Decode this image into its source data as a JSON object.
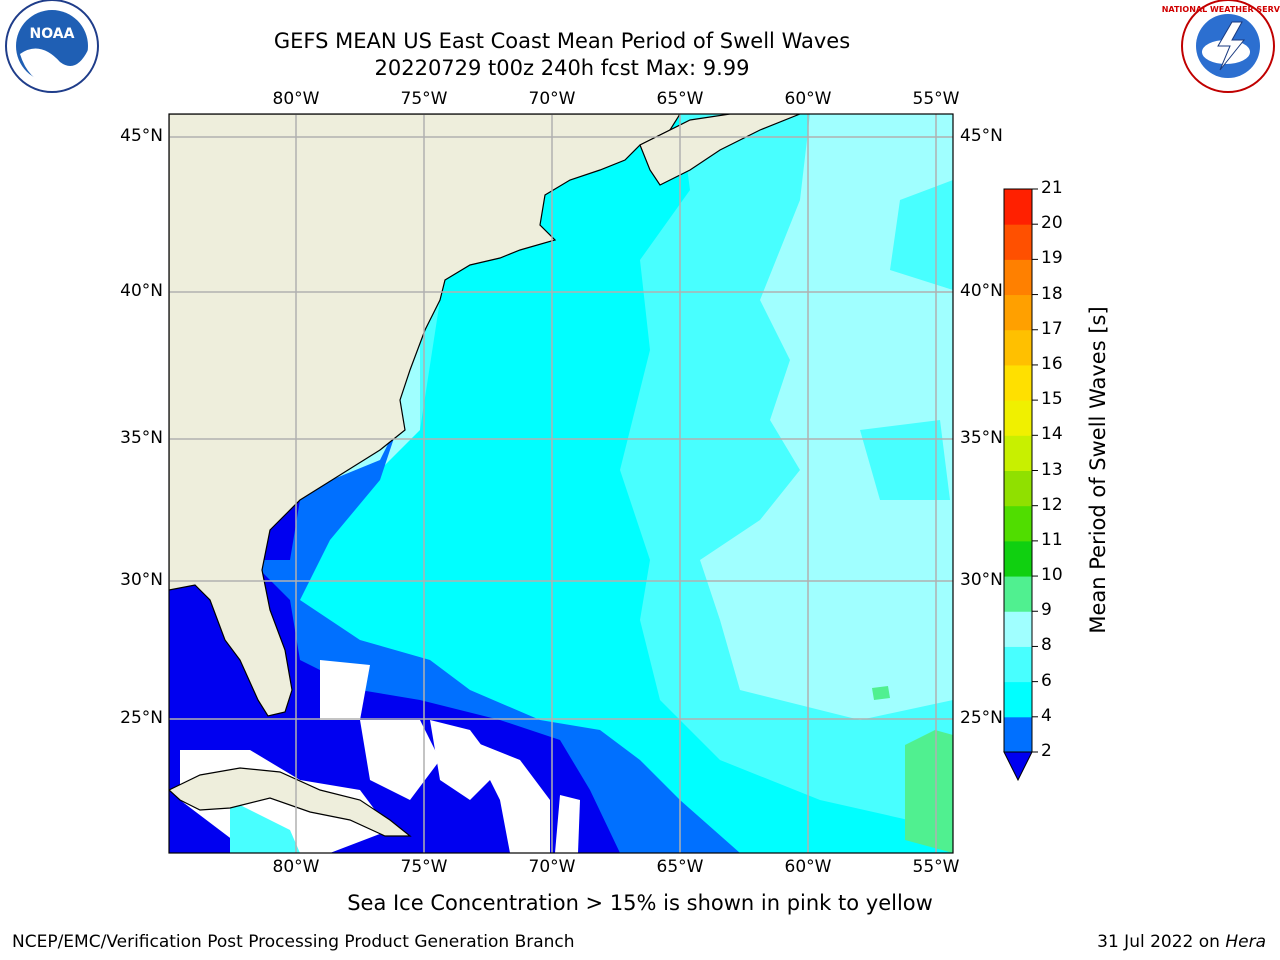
{
  "title": {
    "line1": "GEFS MEAN US East Coast Mean Period of Swell Waves",
    "line2": "20220729 t00z 240h fcst   Max: 9.99"
  },
  "logos": {
    "left": {
      "name": "noaa-logo",
      "text": "NOAA"
    },
    "right": {
      "name": "national-weather-service-logo",
      "text": "NATIONAL WEATHER SERVICE"
    }
  },
  "map": {
    "lon_ticks": [
      "80°W",
      "75°W",
      "70°W",
      "65°W",
      "60°W",
      "55°W"
    ],
    "lat_ticks": [
      "45°N",
      "40°N",
      "35°N",
      "30°N",
      "25°N"
    ],
    "colors": {
      "land": "#eeeedc",
      "ice_free_white": "#ffffff",
      "grid": "#b0b0b0",
      "coast": "#000000"
    }
  },
  "colorbar": {
    "title": "Mean Period of Swell Waves [s]",
    "levels": [
      "2",
      "4",
      "6",
      "8",
      "9",
      "10",
      "11",
      "12",
      "13",
      "14",
      "15",
      "16",
      "17",
      "18",
      "19",
      "20",
      "21"
    ],
    "colors": [
      "#0000f0",
      "#0070ff",
      "#00ffff",
      "#48ffff",
      "#a0ffff",
      "#50f090",
      "#10d010",
      "#50dd00",
      "#90e000",
      "#c8f000",
      "#f0f000",
      "#ffe000",
      "#ffc000",
      "#ffa000",
      "#ff8000",
      "#ff5000",
      "#ff2000",
      "#ff0000"
    ],
    "extend": "min"
  },
  "note": "Sea Ice Concentration > 15% is shown in pink to yellow",
  "footer": {
    "left": "NCEP/EMC/Verification Post Processing Product Generation Branch",
    "date": "31 Jul 2022 on",
    "host": "Hera"
  }
}
